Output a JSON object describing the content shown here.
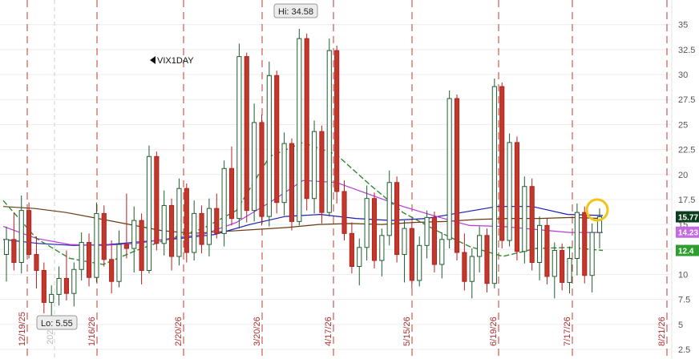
{
  "chart_data": {
    "type": "candlestick",
    "symbol": "VIX1DAY",
    "ylim": [
      2.5,
      36.5
    ],
    "yticks": [
      "35",
      "32.5",
      "30",
      "27.5",
      "25",
      "22.5",
      "20",
      "17.5",
      "15",
      "12.5",
      "10",
      "7.5",
      "5",
      "2.5"
    ],
    "ytick_values": [
      35,
      32.5,
      30,
      27.5,
      25,
      22.5,
      20,
      17.5,
      15,
      12.5,
      10,
      7.5,
      5,
      2.5
    ],
    "date_lines": [
      "12/19/25",
      "1/16/26",
      "2/20/26",
      "3/20/26",
      "4/17/26",
      "5/15/26",
      "6/19/26",
      "7/17/26",
      "8/21/26"
    ],
    "year_marker": "2026",
    "hi_label": "Hi: 34.58",
    "hi_value": 34.58,
    "lo_label": "Lo: 5.55",
    "lo_value": 5.55,
    "last_values": [
      {
        "label": "15.77",
        "value": 15.77,
        "color": "#0b3d1e"
      },
      {
        "label": "14.23",
        "value": 14.23,
        "color": "#c36be3"
      },
      {
        "label": "12.4",
        "value": 12.4,
        "color": "#2e9e2e"
      }
    ],
    "series": [
      {
        "name": "",
        "color": "#6b3a10",
        "kind": "ma"
      },
      {
        "name": "",
        "color": "#1c1cb4",
        "kind": "ma"
      },
      {
        "name": "",
        "color": "#b63ad8",
        "kind": "ma"
      },
      {
        "name": "",
        "color": "#2e8b2e",
        "kind": "ma"
      }
    ],
    "grid": true,
    "highlight_last": true,
    "ma_brown": [
      16.8,
      16.6,
      16.2,
      15.6,
      15.0,
      14.4,
      14.1,
      14.3,
      14.5,
      14.7,
      15.0,
      15.1,
      15.0,
      15.2,
      15.3,
      15.5,
      15.6,
      15.6,
      15.7,
      15.6
    ],
    "ma_blue": [
      13.5,
      13.1,
      12.9,
      13.0,
      13.3,
      13.6,
      14.0,
      15.0,
      15.8,
      16.0,
      15.6,
      15.4,
      15.6,
      16.2,
      16.8,
      16.8,
      16.0,
      15.9
    ],
    "ma_purple": [
      14.8,
      13.6,
      13.0,
      12.9,
      13.1,
      13.6,
      14.0,
      15.2,
      17.2,
      19.4,
      19.2,
      18.0,
      16.8,
      15.8,
      14.9,
      14.8,
      14.5,
      14.2,
      14.2
    ],
    "ma_green": [
      17.4,
      13.6,
      11.6,
      11.0,
      12.4,
      13.6,
      14.6,
      16.4,
      21.8,
      23.2,
      22.0,
      19.0,
      16.2,
      14.4,
      12.8,
      11.8,
      12.6,
      12.7,
      12.4
    ],
    "candles": [
      {
        "o": 12.0,
        "h": 14.8,
        "l": 9.3,
        "c": 13.5
      },
      {
        "o": 13.5,
        "h": 16.2,
        "l": 10.4,
        "c": 11.2
      },
      {
        "o": 11.2,
        "h": 17.9,
        "l": 10.1,
        "c": 16.4
      },
      {
        "o": 16.4,
        "h": 17.2,
        "l": 11.6,
        "c": 12.0
      },
      {
        "o": 12.0,
        "h": 13.8,
        "l": 8.6,
        "c": 10.4
      },
      {
        "o": 10.4,
        "h": 11.2,
        "l": 6.1,
        "c": 7.2
      },
      {
        "o": 7.2,
        "h": 8.9,
        "l": 5.55,
        "c": 8.0
      },
      {
        "o": 8.0,
        "h": 10.8,
        "l": 6.9,
        "c": 9.6
      },
      {
        "o": 9.6,
        "h": 12.4,
        "l": 7.4,
        "c": 8.1
      },
      {
        "o": 8.1,
        "h": 11.2,
        "l": 6.8,
        "c": 10.5
      },
      {
        "o": 10.5,
        "h": 14.2,
        "l": 9.4,
        "c": 13.2
      },
      {
        "o": 13.2,
        "h": 14.1,
        "l": 8.8,
        "c": 9.7
      },
      {
        "o": 9.7,
        "h": 17.2,
        "l": 9.2,
        "c": 16.1
      },
      {
        "o": 16.1,
        "h": 16.9,
        "l": 10.8,
        "c": 11.5
      },
      {
        "o": 11.5,
        "h": 13.4,
        "l": 8.1,
        "c": 9.3
      },
      {
        "o": 9.3,
        "h": 14.4,
        "l": 8.7,
        "c": 13.0
      },
      {
        "o": 13.0,
        "h": 18.1,
        "l": 11.6,
        "c": 12.6
      },
      {
        "o": 12.6,
        "h": 16.8,
        "l": 10.2,
        "c": 15.4
      },
      {
        "o": 15.4,
        "h": 16.1,
        "l": 9.0,
        "c": 10.4
      },
      {
        "o": 10.4,
        "h": 22.9,
        "l": 10.1,
        "c": 21.8
      },
      {
        "o": 21.8,
        "h": 22.3,
        "l": 12.4,
        "c": 13.1
      },
      {
        "o": 13.1,
        "h": 18.4,
        "l": 11.9,
        "c": 16.9
      },
      {
        "o": 16.9,
        "h": 17.6,
        "l": 10.4,
        "c": 11.8
      },
      {
        "o": 11.8,
        "h": 19.6,
        "l": 10.9,
        "c": 18.6
      },
      {
        "o": 18.6,
        "h": 19.1,
        "l": 11.2,
        "c": 12.2
      },
      {
        "o": 12.2,
        "h": 17.4,
        "l": 11.4,
        "c": 16.1
      },
      {
        "o": 16.1,
        "h": 16.9,
        "l": 12.1,
        "c": 13.0
      },
      {
        "o": 13.0,
        "h": 17.6,
        "l": 11.8,
        "c": 16.6
      },
      {
        "o": 16.6,
        "h": 18.1,
        "l": 13.6,
        "c": 14.1
      },
      {
        "o": 14.1,
        "h": 21.4,
        "l": 12.8,
        "c": 20.6
      },
      {
        "o": 20.6,
        "h": 22.8,
        "l": 14.9,
        "c": 15.6
      },
      {
        "o": 15.6,
        "h": 33.1,
        "l": 14.6,
        "c": 31.8
      },
      {
        "o": 31.8,
        "h": 32.2,
        "l": 15.2,
        "c": 16.4
      },
      {
        "o": 16.4,
        "h": 27.1,
        "l": 15.3,
        "c": 25.2
      },
      {
        "o": 25.2,
        "h": 26.0,
        "l": 14.9,
        "c": 15.8
      },
      {
        "o": 15.8,
        "h": 31.3,
        "l": 14.8,
        "c": 29.9
      },
      {
        "o": 29.9,
        "h": 30.4,
        "l": 16.1,
        "c": 17.2
      },
      {
        "o": 17.2,
        "h": 24.2,
        "l": 15.9,
        "c": 23.1
      },
      {
        "o": 23.1,
        "h": 23.6,
        "l": 14.4,
        "c": 15.3
      },
      {
        "o": 15.3,
        "h": 34.58,
        "l": 14.9,
        "c": 33.6
      },
      {
        "o": 33.6,
        "h": 34.1,
        "l": 16.4,
        "c": 17.6
      },
      {
        "o": 17.6,
        "h": 25.4,
        "l": 16.1,
        "c": 24.3
      },
      {
        "o": 24.3,
        "h": 24.9,
        "l": 15.1,
        "c": 16.2
      },
      {
        "o": 16.2,
        "h": 33.6,
        "l": 15.8,
        "c": 32.4
      },
      {
        "o": 32.4,
        "h": 32.9,
        "l": 17.1,
        "c": 18.3
      },
      {
        "o": 18.3,
        "h": 19.4,
        "l": 13.4,
        "c": 14.1
      },
      {
        "o": 14.1,
        "h": 15.2,
        "l": 10.1,
        "c": 10.8
      },
      {
        "o": 10.8,
        "h": 13.6,
        "l": 8.9,
        "c": 12.7
      },
      {
        "o": 12.7,
        "h": 18.9,
        "l": 11.4,
        "c": 17.6
      },
      {
        "o": 17.6,
        "h": 18.2,
        "l": 10.6,
        "c": 11.4
      },
      {
        "o": 11.4,
        "h": 14.6,
        "l": 9.8,
        "c": 13.9
      },
      {
        "o": 13.9,
        "h": 20.4,
        "l": 12.9,
        "c": 19.2
      },
      {
        "o": 19.2,
        "h": 19.8,
        "l": 11.2,
        "c": 12.0
      },
      {
        "o": 12.0,
        "h": 15.4,
        "l": 9.2,
        "c": 14.6
      },
      {
        "o": 14.6,
        "h": 15.2,
        "l": 8.6,
        "c": 9.4
      },
      {
        "o": 9.4,
        "h": 13.8,
        "l": 8.8,
        "c": 12.9
      },
      {
        "o": 12.9,
        "h": 16.4,
        "l": 11.6,
        "c": 15.7
      },
      {
        "o": 15.7,
        "h": 16.3,
        "l": 10.2,
        "c": 11.0
      },
      {
        "o": 11.0,
        "h": 14.2,
        "l": 9.6,
        "c": 13.5
      },
      {
        "o": 13.5,
        "h": 28.4,
        "l": 12.6,
        "c": 27.6
      },
      {
        "o": 27.6,
        "h": 28.0,
        "l": 11.4,
        "c": 12.2
      },
      {
        "o": 12.2,
        "h": 14.1,
        "l": 8.4,
        "c": 9.3
      },
      {
        "o": 9.3,
        "h": 12.6,
        "l": 7.6,
        "c": 11.8
      },
      {
        "o": 11.8,
        "h": 14.8,
        "l": 10.2,
        "c": 13.9
      },
      {
        "o": 13.9,
        "h": 14.6,
        "l": 8.2,
        "c": 9.1
      },
      {
        "o": 9.1,
        "h": 29.6,
        "l": 8.6,
        "c": 28.8
      },
      {
        "o": 28.8,
        "h": 29.2,
        "l": 12.6,
        "c": 13.4
      },
      {
        "o": 13.4,
        "h": 24.1,
        "l": 12.8,
        "c": 23.2
      },
      {
        "o": 23.2,
        "h": 23.8,
        "l": 11.4,
        "c": 12.3
      },
      {
        "o": 12.3,
        "h": 19.8,
        "l": 11.1,
        "c": 18.8
      },
      {
        "o": 18.8,
        "h": 19.6,
        "l": 10.4,
        "c": 11.2
      },
      {
        "o": 11.2,
        "h": 15.8,
        "l": 9.4,
        "c": 14.9
      },
      {
        "o": 14.9,
        "h": 15.6,
        "l": 9.0,
        "c": 9.8
      },
      {
        "o": 9.8,
        "h": 13.2,
        "l": 7.6,
        "c": 12.4
      },
      {
        "o": 12.4,
        "h": 13.1,
        "l": 8.4,
        "c": 9.2
      },
      {
        "o": 9.2,
        "h": 12.8,
        "l": 8.1,
        "c": 11.6
      },
      {
        "o": 11.6,
        "h": 17.1,
        "l": 9.9,
        "c": 16.2
      },
      {
        "o": 16.2,
        "h": 16.8,
        "l": 9.1,
        "c": 9.9
      },
      {
        "o": 9.9,
        "h": 15.1,
        "l": 8.2,
        "c": 14.2
      },
      {
        "o": 14.2,
        "h": 16.6,
        "l": 12.6,
        "c": 15.77
      }
    ]
  }
}
